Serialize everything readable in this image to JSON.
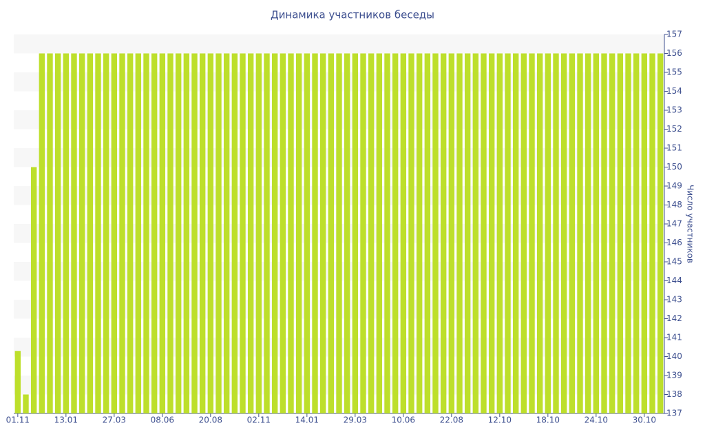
{
  "chart_data": {
    "type": "bar",
    "title": "Динамика участников беседы",
    "y_label": "Число участников",
    "categories": [
      "01.11",
      null,
      null,
      null,
      null,
      null,
      "13.01",
      null,
      null,
      null,
      null,
      null,
      "27.03",
      null,
      null,
      null,
      null,
      null,
      "08.06",
      null,
      null,
      null,
      null,
      null,
      "20.08",
      null,
      null,
      null,
      null,
      null,
      "02.11",
      null,
      null,
      null,
      null,
      null,
      "14.01",
      null,
      null,
      null,
      null,
      null,
      "29.03",
      null,
      null,
      null,
      null,
      null,
      "10.06",
      null,
      null,
      null,
      null,
      null,
      "22.08",
      null,
      null,
      null,
      null,
      null,
      "12.10",
      null,
      null,
      null,
      null,
      null,
      "18.10",
      null,
      null,
      null,
      null,
      null,
      "24.10",
      null,
      null,
      null,
      null,
      null,
      "30.10",
      null,
      null
    ],
    "values": [
      140.3,
      138,
      150,
      156,
      156,
      156,
      156,
      156,
      156,
      156,
      156,
      156,
      156,
      156,
      156,
      156,
      156,
      156,
      156,
      156,
      156,
      156,
      156,
      156,
      156,
      156,
      156,
      156,
      156,
      156,
      156,
      156,
      156,
      156,
      156,
      156,
      156,
      156,
      156,
      156,
      156,
      156,
      156,
      156,
      156,
      156,
      156,
      156,
      156,
      156,
      156,
      156,
      156,
      156,
      156,
      156,
      156,
      156,
      156,
      156,
      156,
      156,
      156,
      156,
      156,
      156,
      156,
      156,
      156,
      156,
      156,
      156,
      156,
      156,
      156,
      156,
      156,
      156,
      156,
      156,
      156
    ],
    "color": "#bddf2b",
    "ylim": [
      137,
      157
    ],
    "yticks": [
      137,
      138,
      139,
      140,
      141,
      142,
      143,
      144,
      145,
      146,
      147,
      148,
      149,
      150,
      151,
      152,
      153,
      154,
      155,
      156,
      157
    ]
  }
}
